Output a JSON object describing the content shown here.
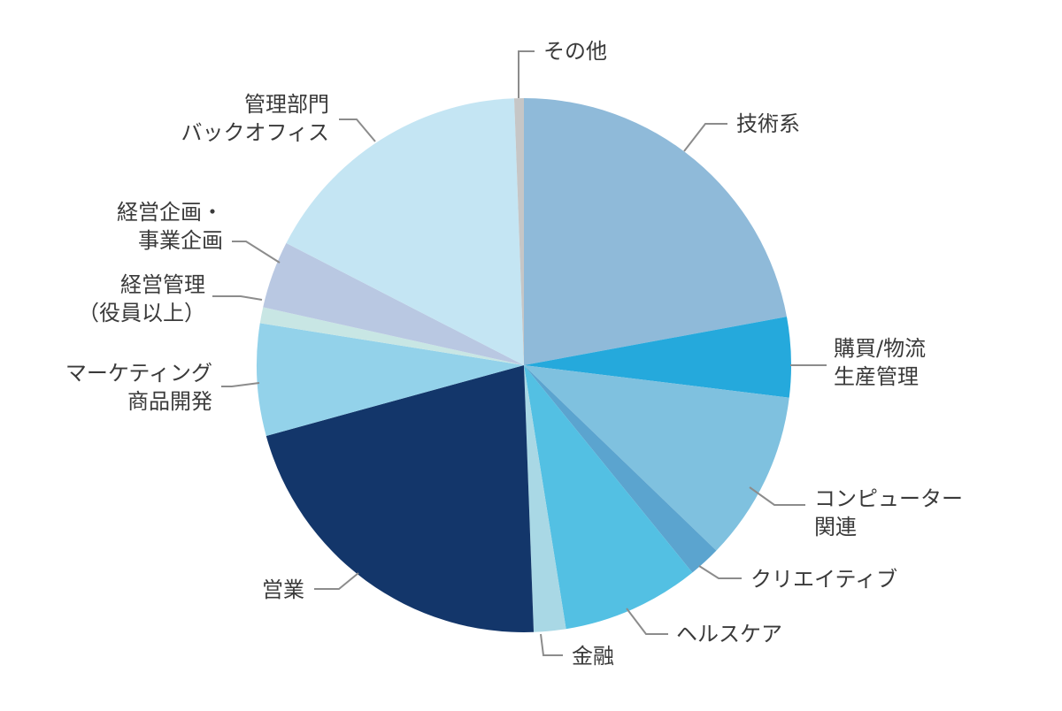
{
  "chart_data": {
    "type": "pie",
    "title": "",
    "slices": [
      {
        "label": [
          "技術系"
        ],
        "value": 22.8,
        "color": "#8fbad9"
      },
      {
        "label": [
          "購買/物流",
          "生産管理"
        ],
        "value": 5.0,
        "color": "#25a9dc"
      },
      {
        "label": [
          "コンピューター",
          "関連"
        ],
        "value": 10.6,
        "color": "#7fc1df"
      },
      {
        "label": [
          "クリエイティブ"
        ],
        "value": 2.0,
        "color": "#5ba4cf"
      },
      {
        "label": [
          "ヘルスケア"
        ],
        "value": 8.6,
        "color": "#53c0e3"
      },
      {
        "label": [
          "金融"
        ],
        "value": 2.0,
        "color": "#a9d8e5"
      },
      {
        "label": [
          "営業"
        ],
        "value": 22.0,
        "color": "#13366a"
      },
      {
        "label": [
          "マーケティング",
          "商品開発"
        ],
        "value": 7.0,
        "color": "#93d2ea"
      },
      {
        "label": [
          "経営管理",
          "（役員以上）"
        ],
        "value": 1.0,
        "color": "#c8e6e4"
      },
      {
        "label": [
          "経営企画・",
          "事業企画"
        ],
        "value": 4.2,
        "color": "#b9c8e2"
      },
      {
        "label": [
          "管理部門",
          "バックオフィス"
        ],
        "value": 17.4,
        "color": "#c4e5f3"
      },
      {
        "label": [
          "その他"
        ],
        "value": 0.6,
        "color": "#c6c6c6"
      }
    ]
  }
}
